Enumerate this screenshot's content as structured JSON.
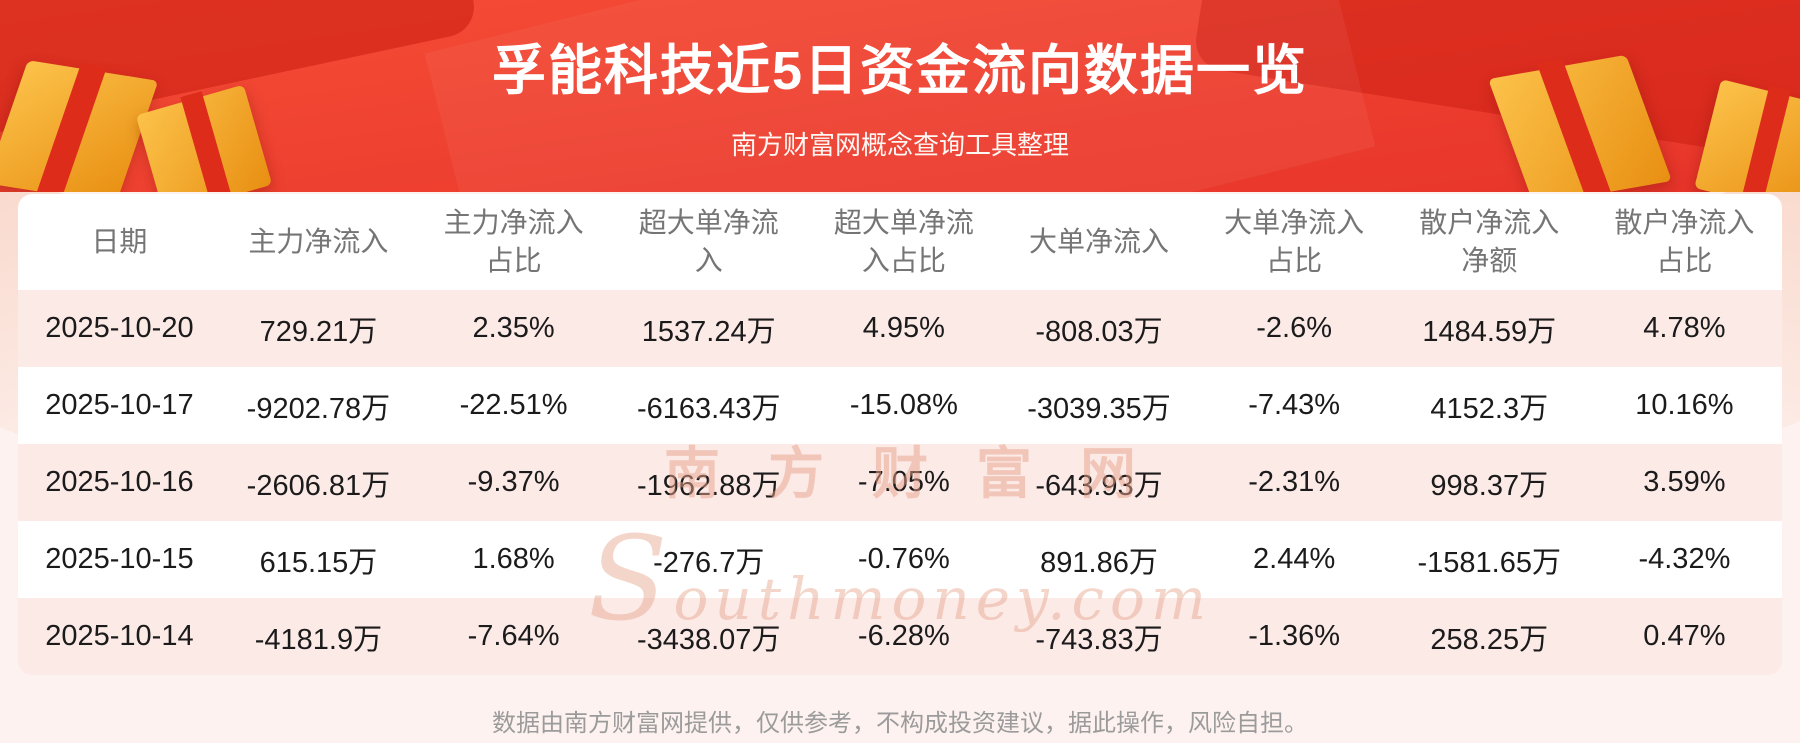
{
  "header": {
    "title": "孚能科技近5日资金流向数据一览",
    "subtitle": "南方财富网概念查询工具整理"
  },
  "watermark": {
    "cn": "南方财富网",
    "en": "Southmoney.com"
  },
  "footer": {
    "disclaimer": "数据由南方财富网提供，仅供参考，不构成投资建议，据此操作，风险自担。"
  },
  "colors": {
    "banner_top": "#f64d36",
    "banner_bottom": "#e7342a",
    "accent_dark": "#cf2a1b",
    "gold_light": "#fcc24a",
    "gold_dark": "#e88f12",
    "ribbon_red": "#dd2c1a",
    "page_bg": "#fdf2ef",
    "panel_bg": "#ffffff",
    "row_alt": "#fceae7",
    "header_text": "#757575",
    "body_text": "#1b1b1b",
    "footer_text": "#9b9b9b",
    "title_text": "#ffffff",
    "watermark": "#e8a38c"
  },
  "chart_data": {
    "type": "table",
    "title": "孚能科技近5日资金流向数据一览",
    "columns": [
      "日期",
      "主力净流入",
      "主力净流入占比",
      "超大单净流入",
      "超大单净流入占比",
      "大单净流入",
      "大单净流入占比",
      "散户净流入净额",
      "散户净流入占比"
    ],
    "rows": [
      [
        "2025-10-20",
        "729.21万",
        "2.35%",
        "1537.24万",
        "4.95%",
        "-808.03万",
        "-2.6%",
        "1484.59万",
        "4.78%"
      ],
      [
        "2025-10-17",
        "-9202.78万",
        "-22.51%",
        "-6163.43万",
        "-15.08%",
        "-3039.35万",
        "-7.43%",
        "4152.3万",
        "10.16%"
      ],
      [
        "2025-10-16",
        "-2606.81万",
        "-9.37%",
        "-1962.88万",
        "-7.05%",
        "-643.93万",
        "-2.31%",
        "998.37万",
        "3.59%"
      ],
      [
        "2025-10-15",
        "615.15万",
        "1.68%",
        "-276.7万",
        "-0.76%",
        "891.86万",
        "2.44%",
        "-1581.65万",
        "-4.32%"
      ],
      [
        "2025-10-14",
        "-4181.9万",
        "-7.64%",
        "-3438.07万",
        "-6.28%",
        "-743.83万",
        "-1.36%",
        "258.25万",
        "0.47%"
      ]
    ],
    "row_striping": "rows 1,3,5 light pink; rows 2,4 white",
    "legend_position": "none",
    "grid": false
  }
}
